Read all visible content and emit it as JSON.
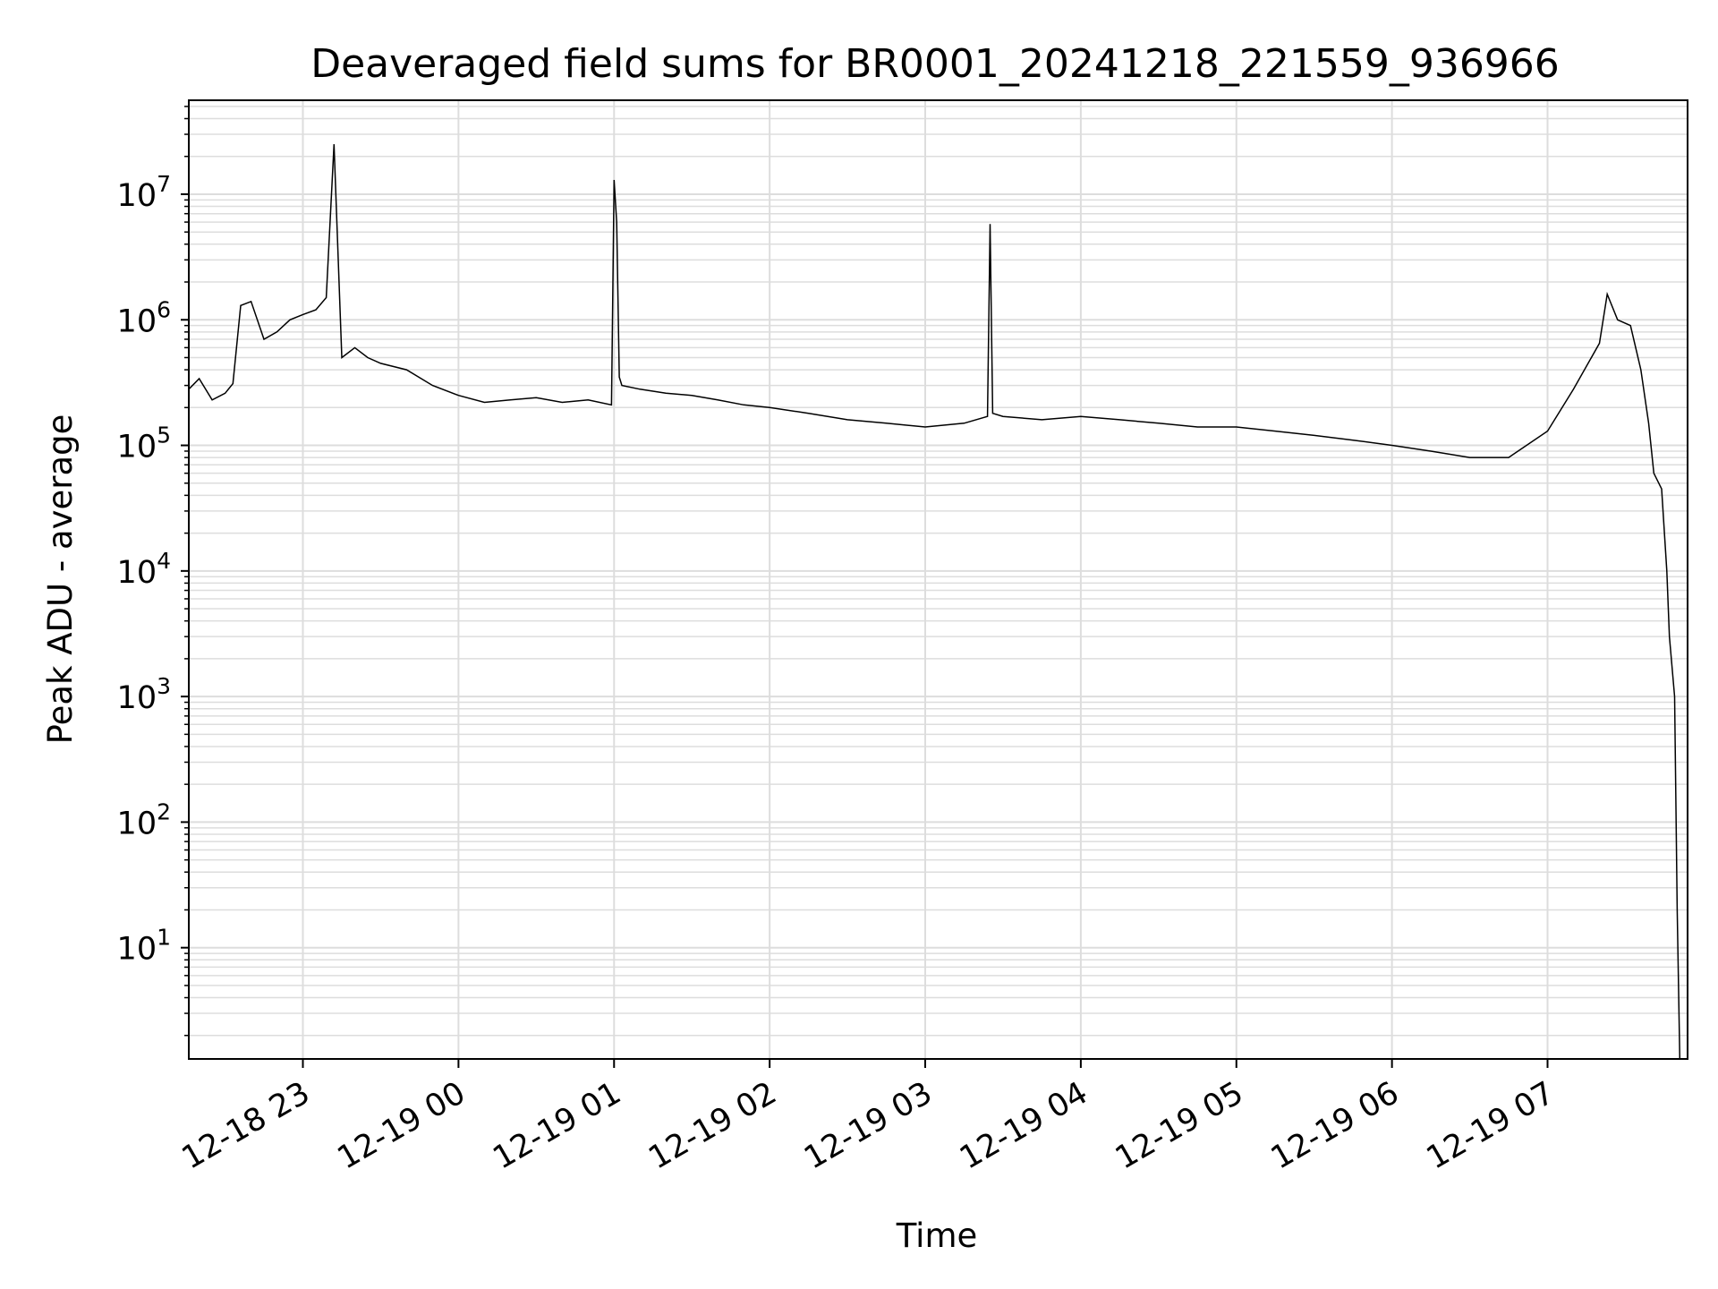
{
  "chart_data": {
    "type": "line",
    "title": "Deaveraged field sums for BR0001_20241218_221559_936966",
    "xlabel": "Time",
    "ylabel": "Peak ADU - average",
    "yscale": "log",
    "ylim": [
      1.3,
      56000000
    ],
    "xlim": [
      "2024-12-18 22:16",
      "2024-12-19 07:54"
    ],
    "grid": true,
    "line_color": "#000000",
    "grid_color": "#dddddd",
    "x_ticks": [
      {
        "label": "12-18 23",
        "time": "2024-12-18 23:00"
      },
      {
        "label": "12-19 00",
        "time": "2024-12-19 00:00"
      },
      {
        "label": "12-19 01",
        "time": "2024-12-19 01:00"
      },
      {
        "label": "12-19 02",
        "time": "2024-12-19 02:00"
      },
      {
        "label": "12-19 03",
        "time": "2024-12-19 03:00"
      },
      {
        "label": "12-19 04",
        "time": "2024-12-19 04:00"
      },
      {
        "label": "12-19 05",
        "time": "2024-12-19 05:00"
      },
      {
        "label": "12-19 06",
        "time": "2024-12-19 06:00"
      },
      {
        "label": "12-19 07",
        "time": "2024-12-19 07:00"
      }
    ],
    "y_ticks": [
      {
        "base": "10",
        "exp": "1",
        "value": 10
      },
      {
        "base": "10",
        "exp": "2",
        "value": 100
      },
      {
        "base": "10",
        "exp": "3",
        "value": 1000
      },
      {
        "base": "10",
        "exp": "4",
        "value": 10000
      },
      {
        "base": "10",
        "exp": "5",
        "value": 100000
      },
      {
        "base": "10",
        "exp": "6",
        "value": 1000000
      },
      {
        "base": "10",
        "exp": "7",
        "value": 10000000
      }
    ],
    "series": [
      {
        "x": [
          "2024-12-18 22:16",
          "2024-12-18 22:20",
          "2024-12-18 22:25",
          "2024-12-18 22:30",
          "2024-12-18 22:33",
          "2024-12-18 22:36",
          "2024-12-18 22:40",
          "2024-12-18 22:45",
          "2024-12-18 22:50",
          "2024-12-18 22:55",
          "2024-12-18 23:00",
          "2024-12-18 23:05",
          "2024-12-18 23:09",
          "2024-12-18 23:12",
          "2024-12-18 23:15",
          "2024-12-18 23:20",
          "2024-12-18 23:25",
          "2024-12-18 23:30",
          "2024-12-18 23:40",
          "2024-12-18 23:50",
          "2024-12-19 00:00",
          "2024-12-19 00:10",
          "2024-12-19 00:20",
          "2024-12-19 00:30",
          "2024-12-19 00:40",
          "2024-12-19 00:50",
          "2024-12-19 00:59",
          "2024-12-19 01:00",
          "2024-12-19 01:01",
          "2024-12-19 01:02",
          "2024-12-19 01:03",
          "2024-12-19 01:10",
          "2024-12-19 01:20",
          "2024-12-19 01:30",
          "2024-12-19 01:40",
          "2024-12-19 01:50",
          "2024-12-19 02:00",
          "2024-12-19 02:15",
          "2024-12-19 02:30",
          "2024-12-19 02:45",
          "2024-12-19 03:00",
          "2024-12-19 03:15",
          "2024-12-19 03:24",
          "2024-12-19 03:25",
          "2024-12-19 03:26",
          "2024-12-19 03:30",
          "2024-12-19 03:45",
          "2024-12-19 04:00",
          "2024-12-19 04:15",
          "2024-12-19 04:30",
          "2024-12-19 04:45",
          "2024-12-19 05:00",
          "2024-12-19 05:15",
          "2024-12-19 05:30",
          "2024-12-19 05:45",
          "2024-12-19 06:00",
          "2024-12-19 06:15",
          "2024-12-19 06:30",
          "2024-12-19 06:45",
          "2024-12-19 07:00",
          "2024-12-19 07:10",
          "2024-12-19 07:20",
          "2024-12-19 07:23",
          "2024-12-19 07:27",
          "2024-12-19 07:32",
          "2024-12-19 07:36",
          "2024-12-19 07:39",
          "2024-12-19 07:41",
          "2024-12-19 07:44",
          "2024-12-19 07:46",
          "2024-12-19 07:47",
          "2024-12-19 07:49",
          "2024-12-19 07:50",
          "2024-12-19 07:51"
        ],
        "y": [
          280000,
          340000,
          230000,
          260000,
          310000,
          1300000,
          1400000,
          700000,
          800000,
          1000000,
          1100000,
          1200000,
          1500000,
          25000000,
          500000,
          600000,
          500000,
          450000,
          400000,
          300000,
          250000,
          220000,
          230000,
          240000,
          220000,
          230000,
          210000,
          13000000,
          6000000,
          350000,
          300000,
          280000,
          260000,
          250000,
          230000,
          210000,
          200000,
          180000,
          160000,
          150000,
          140000,
          150000,
          170000,
          5800000,
          180000,
          170000,
          160000,
          170000,
          160000,
          150000,
          140000,
          140000,
          130000,
          120000,
          110000,
          100000,
          90000,
          80000,
          80000,
          130000,
          280000,
          650000,
          1600000,
          1000000,
          900000,
          400000,
          150000,
          60000,
          45000,
          10000,
          3000,
          1000,
          20,
          1.3
        ]
      }
    ]
  }
}
